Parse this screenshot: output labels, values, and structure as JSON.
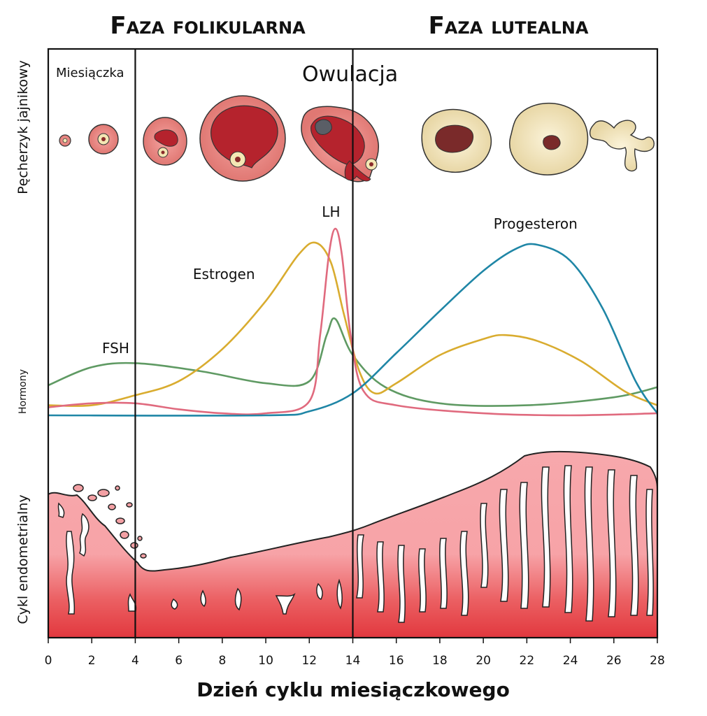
{
  "phases": {
    "follicular": "Faza folikularna",
    "luteal": "Faza lutealna"
  },
  "labels": {
    "menstruation": "Miesiączka",
    "ovulation": "Owulacja"
  },
  "side_labels": {
    "follicle": "Pęcherzyk jajnikowy",
    "hormones": "Hormony",
    "endometrial": "Cykl endometrialny"
  },
  "xlabel": "Dzień cyklu miesiączkowego",
  "colors": {
    "fsh": "#5f9a63",
    "estrogen": "#d9ac2f",
    "lh": "#e06a7e",
    "progesterone": "#1f86a6",
    "tissue_light": "#f6a4a8",
    "tissue_dark": "#e3383f",
    "follicle_red": "#b5232d",
    "follicle_rim": "#ee8e8a",
    "corpus": "#f2e6bf"
  },
  "chart_data": {
    "type": "line",
    "title": "",
    "xlabel": "Dzień cyklu miesiączkowego",
    "ylabel": "Hormony",
    "xlim": [
      0,
      28
    ],
    "ylim": [
      0,
      100
    ],
    "x_ticks": [
      0,
      2,
      4,
      6,
      8,
      10,
      12,
      14,
      16,
      18,
      20,
      22,
      24,
      26,
      28
    ],
    "phase_boundaries": [
      4,
      14
    ],
    "series": [
      {
        "name": "FSH",
        "points": [
          [
            0,
            15
          ],
          [
            2,
            24
          ],
          [
            4,
            26
          ],
          [
            7,
            22
          ],
          [
            10,
            16
          ],
          [
            12,
            17
          ],
          [
            12.8,
            40
          ],
          [
            13.2,
            48
          ],
          [
            14,
            30
          ],
          [
            15.5,
            14
          ],
          [
            18,
            6
          ],
          [
            22,
            5
          ],
          [
            26,
            9
          ],
          [
            28,
            14
          ]
        ]
      },
      {
        "name": "Estrogen",
        "points": [
          [
            0,
            5
          ],
          [
            2,
            5
          ],
          [
            4,
            10
          ],
          [
            6,
            17
          ],
          [
            8,
            33
          ],
          [
            10,
            57
          ],
          [
            11.5,
            80
          ],
          [
            12.3,
            86
          ],
          [
            13,
            76
          ],
          [
            13.6,
            50
          ],
          [
            14.3,
            22
          ],
          [
            15,
            11
          ],
          [
            16,
            16
          ],
          [
            18,
            30
          ],
          [
            20,
            38
          ],
          [
            21,
            40
          ],
          [
            22.5,
            37
          ],
          [
            24.5,
            27
          ],
          [
            26.5,
            12
          ],
          [
            28,
            5
          ]
        ]
      },
      {
        "name": "LH",
        "points": [
          [
            0,
            4
          ],
          [
            2,
            6
          ],
          [
            4,
            6
          ],
          [
            6,
            3
          ],
          [
            8,
            1
          ],
          [
            10,
            1
          ],
          [
            12,
            7
          ],
          [
            12.5,
            40
          ],
          [
            12.9,
            80
          ],
          [
            13.2,
            93
          ],
          [
            13.5,
            80
          ],
          [
            13.9,
            40
          ],
          [
            14.5,
            12
          ],
          [
            16,
            5
          ],
          [
            20,
            1
          ],
          [
            24,
            0
          ],
          [
            28,
            1
          ]
        ]
      },
      {
        "name": "Progesteron",
        "points": [
          [
            0,
            0
          ],
          [
            10,
            0
          ],
          [
            12,
            2
          ],
          [
            14,
            11
          ],
          [
            16,
            31
          ],
          [
            18,
            52
          ],
          [
            20,
            72
          ],
          [
            21.5,
            83
          ],
          [
            22.5,
            85
          ],
          [
            24,
            77
          ],
          [
            25.5,
            53
          ],
          [
            27,
            17
          ],
          [
            28,
            1
          ]
        ]
      }
    ],
    "series_labels": [
      "FSH",
      "Estrogen",
      "LH",
      "Progesteron"
    ]
  }
}
